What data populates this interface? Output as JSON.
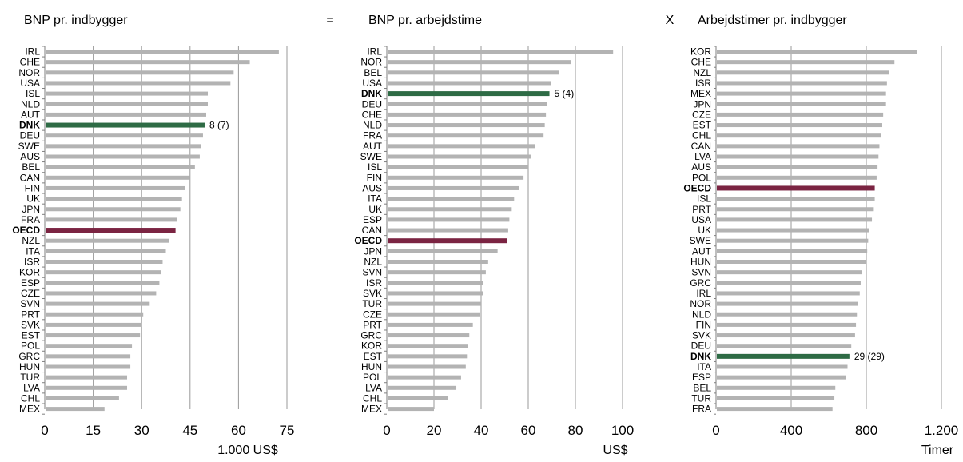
{
  "operators": [
    "=",
    "X"
  ],
  "colors": {
    "bar": "#b3b3b3",
    "highlight_dnk": "#2e6b45",
    "highlight_oecd": "#7b2442",
    "grid": "#999999"
  },
  "chart_data": [
    {
      "type": "bar",
      "orientation": "horizontal",
      "title": "BNP pr. indbygger",
      "xlabel": "1.000 US$",
      "xlim": [
        0,
        75
      ],
      "xticks": [
        "0",
        "15",
        "30",
        "45",
        "60",
        "75"
      ],
      "grid": true,
      "bold_categories": [
        "DNK",
        "OECD"
      ],
      "highlights": {
        "DNK": "highlight_dnk",
        "OECD": "highlight_oecd"
      },
      "annotation": {
        "category": "DNK",
        "text": "8 (7)"
      },
      "categories": [
        "IRL",
        "CHE",
        "NOR",
        "USA",
        "ISL",
        "NLD",
        "AUT",
        "DNK",
        "DEU",
        "SWE",
        "AUS",
        "BEL",
        "CAN",
        "FIN",
        "UK",
        "JPN",
        "FRA",
        "OECD",
        "NZL",
        "ITA",
        "ISR",
        "KOR",
        "ESP",
        "CZE",
        "SVN",
        "PRT",
        "SVK",
        "EST",
        "POL",
        "GRC",
        "HUN",
        "TUR",
        "LVA",
        "CHL",
        "MEX"
      ],
      "values": [
        72.5,
        63.5,
        58.5,
        57.5,
        50.5,
        50.5,
        50,
        49.5,
        49,
        48.5,
        48,
        46.5,
        45,
        43.5,
        42.5,
        42,
        41,
        40.5,
        38.5,
        37.5,
        36.5,
        36,
        35.5,
        34.5,
        32.5,
        30.5,
        30,
        29.5,
        27,
        26.5,
        26.5,
        25.5,
        25.5,
        23,
        18.5
      ]
    },
    {
      "type": "bar",
      "orientation": "horizontal",
      "title": "BNP pr. arbejdstime",
      "xlabel": "US$",
      "xlim": [
        0,
        100
      ],
      "xticks": [
        "0",
        "20",
        "40",
        "60",
        "80",
        "100"
      ],
      "grid": true,
      "bold_categories": [
        "DNK",
        "OECD"
      ],
      "highlights": {
        "DNK": "highlight_dnk",
        "OECD": "highlight_oecd"
      },
      "annotation": {
        "category": "DNK",
        "text": "5 (4)"
      },
      "categories": [
        "IRL",
        "NOR",
        "BEL",
        "USA",
        "DNK",
        "DEU",
        "CHE",
        "NLD",
        "FRA",
        "AUT",
        "SWE",
        "ISL",
        "FIN",
        "AUS",
        "ITA",
        "UK",
        "ESP",
        "CAN",
        "OECD",
        "JPN",
        "NZL",
        "SVN",
        "ISR",
        "SVK",
        "TUR",
        "CZE",
        "PRT",
        "GRC",
        "KOR",
        "EST",
        "HUN",
        "POL",
        "LVA",
        "CHL",
        "MEX"
      ],
      "values": [
        96,
        78,
        73,
        69.5,
        69,
        68,
        67.5,
        67,
        66.5,
        63,
        61,
        60,
        58,
        56,
        54,
        53,
        52,
        51.5,
        51,
        47,
        43,
        42,
        41,
        41,
        40,
        39.5,
        36.5,
        35,
        34.5,
        34,
        33.5,
        31.5,
        29.5,
        26,
        20
      ]
    },
    {
      "type": "bar",
      "orientation": "horizontal",
      "title": "Arbejdstimer pr. indbygger",
      "xlabel": "Timer",
      "xlim": [
        0,
        1200
      ],
      "xticks": [
        "0",
        "400",
        "800",
        "1.200"
      ],
      "grid": true,
      "bold_categories": [
        "DNK",
        "OECD"
      ],
      "highlights": {
        "DNK": "highlight_dnk",
        "OECD": "highlight_oecd"
      },
      "annotation": {
        "category": "DNK",
        "text": "29 (29)"
      },
      "categories": [
        "KOR",
        "CHE",
        "NZL",
        "ISR",
        "MEX",
        "JPN",
        "CZE",
        "EST",
        "CHL",
        "CAN",
        "LVA",
        "AUS",
        "POL",
        "OECD",
        "ISL",
        "PRT",
        "USA",
        "UK",
        "SWE",
        "AUT",
        "HUN",
        "SVN",
        "GRC",
        "IRL",
        "NOR",
        "NLD",
        "FIN",
        "SVK",
        "DEU",
        "DNK",
        "ITA",
        "ESP",
        "BEL",
        "TUR",
        "FRA"
      ],
      "values": [
        1070,
        950,
        920,
        910,
        905,
        905,
        890,
        885,
        880,
        870,
        865,
        860,
        855,
        845,
        845,
        840,
        830,
        815,
        810,
        805,
        800,
        775,
        770,
        765,
        755,
        750,
        745,
        740,
        720,
        710,
        700,
        690,
        635,
        630,
        620
      ]
    }
  ]
}
